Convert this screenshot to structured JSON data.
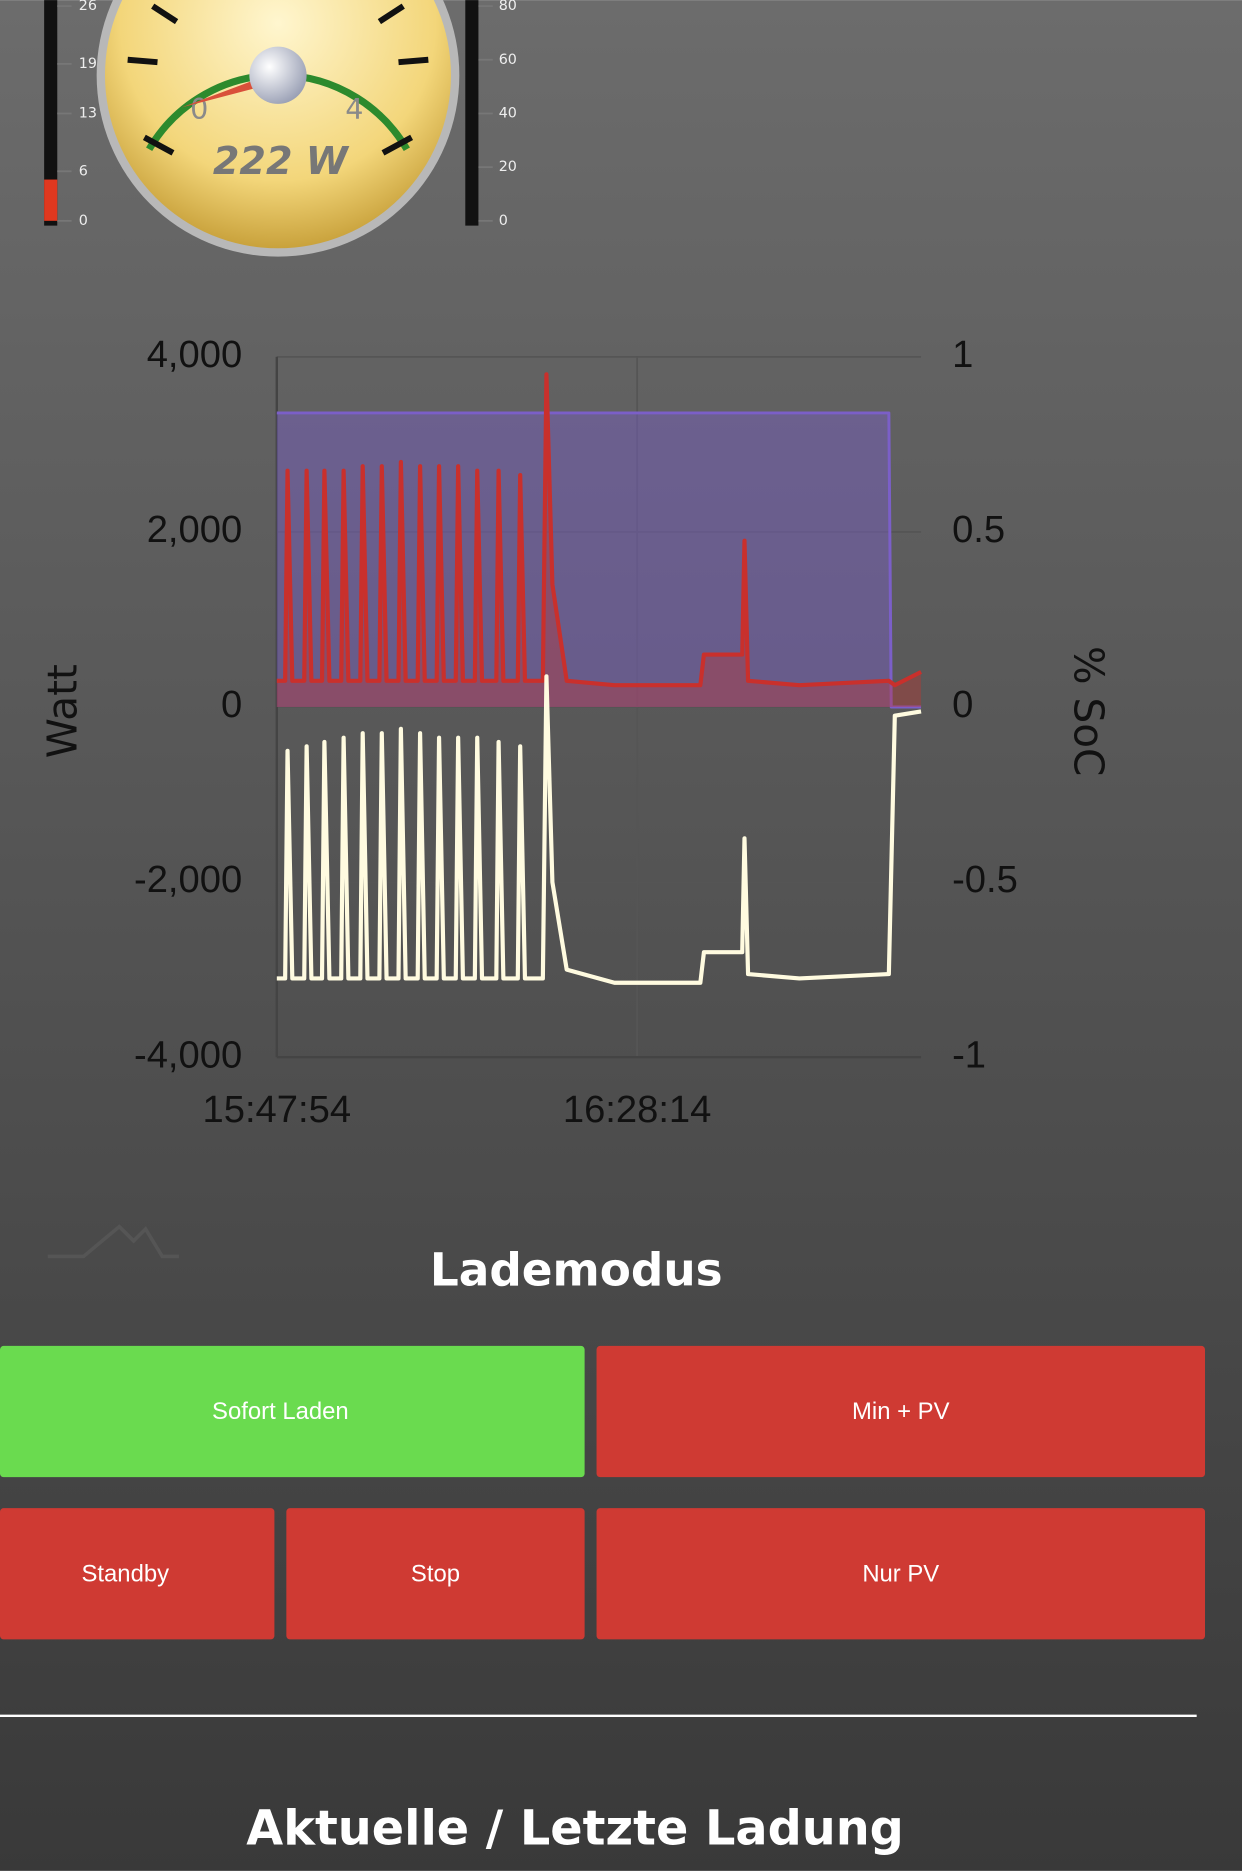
{
  "gauge": {
    "ticks": [
      0,
      4
    ],
    "readout": "222 W"
  },
  "left_bar": {
    "ticks": [
      0,
      6,
      13,
      19,
      26
    ],
    "value": 5
  },
  "right_bar": {
    "ticks": [
      0,
      20,
      40,
      60,
      80
    ]
  },
  "chart_data": {
    "type": "line",
    "ylabel": "Watt",
    "y2label": "% SoC",
    "xlim": [
      56874,
      61201
    ],
    "xticks": [
      {
        "value": 56874,
        "label": "15:47:54"
      },
      {
        "value": 59294,
        "label": "16:28:14"
      }
    ],
    "ylim": [
      -4000,
      4000
    ],
    "yticks": [
      {
        "value": 4000,
        "label": "4,000"
      },
      {
        "value": 2000,
        "label": "2,000"
      },
      0,
      {
        "value": -2000,
        "label": "-2,000"
      },
      {
        "value": -4000,
        "label": "-4,000"
      }
    ],
    "y2lim": [
      -1,
      1
    ],
    "y2ticks": [
      1,
      0.5,
      0,
      -0.5,
      -1
    ],
    "grid": true,
    "series": [
      {
        "color": "#7b5fc8",
        "axis": "y2",
        "x": [
          56874,
          60985,
          61001,
          61201
        ],
        "values": [
          0.84,
          0.84,
          0,
          0
        ]
      },
      {
        "color": "#c9302c",
        "x": [
          56874,
          56930,
          56946,
          56978,
          57058,
          57074,
          57106,
          57178,
          57194,
          57227,
          57307,
          57323,
          57355,
          57435,
          57451,
          57483,
          57563,
          57579,
          57611,
          57691,
          57707,
          57739,
          57820,
          57836,
          57868,
          57948,
          57964,
          57996,
          58076,
          58092,
          58124,
          58204,
          58220,
          58252,
          58348,
          58364,
          58396,
          58493,
          58509,
          58541,
          58661,
          58685,
          58725,
          58821,
          59142,
          59719,
          59743,
          60000,
          60015,
          60039,
          60384,
          60985,
          61025,
          61201
        ],
        "values": [
          300,
          300,
          2700,
          300,
          300,
          2700,
          300,
          300,
          2700,
          300,
          300,
          2700,
          300,
          300,
          2750,
          300,
          300,
          2750,
          300,
          300,
          2800,
          300,
          300,
          2750,
          300,
          300,
          2750,
          300,
          300,
          2750,
          300,
          300,
          2700,
          300,
          300,
          2700,
          300,
          300,
          2650,
          300,
          300,
          3800,
          1400,
          300,
          250,
          250,
          600,
          600,
          1900,
          300,
          250,
          300,
          250,
          400
        ]
      },
      {
        "color": "#fffbe0",
        "x": [
          56874,
          56930,
          56946,
          56978,
          57058,
          57074,
          57106,
          57178,
          57194,
          57227,
          57307,
          57323,
          57355,
          57435,
          57451,
          57483,
          57563,
          57579,
          57611,
          57691,
          57707,
          57739,
          57820,
          57836,
          57868,
          57948,
          57964,
          57996,
          58076,
          58092,
          58124,
          58204,
          58220,
          58252,
          58348,
          58364,
          58396,
          58493,
          58509,
          58541,
          58661,
          58685,
          58725,
          58821,
          59142,
          59719,
          59743,
          60000,
          60015,
          60039,
          60384,
          60985,
          61025,
          61201
        ],
        "values": [
          -3100,
          -3100,
          -500,
          -3100,
          -3100,
          -450,
          -3100,
          -3100,
          -400,
          -3100,
          -3100,
          -350,
          -3100,
          -3100,
          -300,
          -3100,
          -3100,
          -300,
          -3100,
          -3100,
          -250,
          -3100,
          -3100,
          -300,
          -3100,
          -3100,
          -350,
          -3100,
          -3100,
          -350,
          -3100,
          -3100,
          -350,
          -3100,
          -3100,
          -400,
          -3100,
          -3100,
          -450,
          -3100,
          -3100,
          350,
          -2000,
          -3000,
          -3150,
          -3150,
          -2800,
          -2800,
          -1500,
          -3050,
          -3100,
          -3050,
          -100,
          -50
        ]
      }
    ]
  },
  "section_title": "Lademodus",
  "buttons": [
    "Sofort Laden",
    "Min + PV",
    "Standby",
    "Stop",
    "Nur PV"
  ],
  "footer_title": "Aktuelle / Letzte Ladung"
}
